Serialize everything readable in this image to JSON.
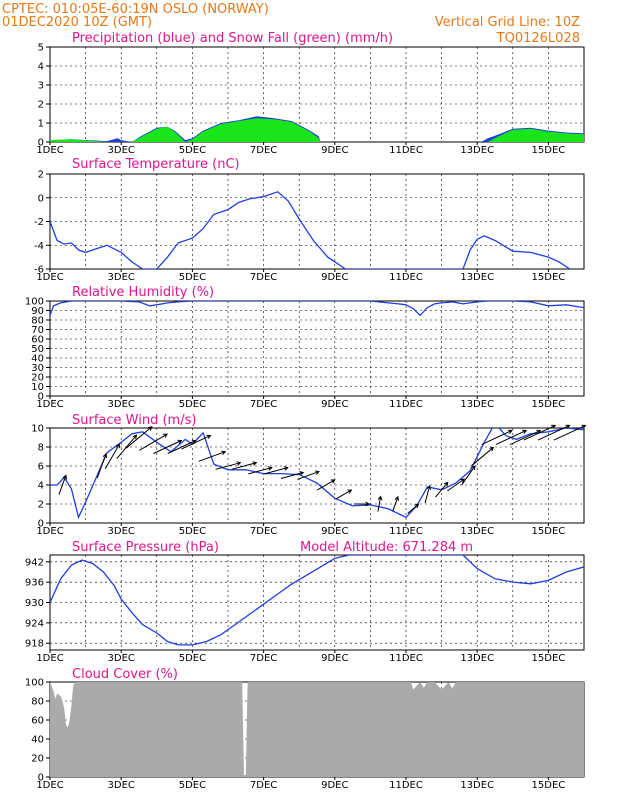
{
  "header": {
    "line1": "CPTEC:   010:05E-60:19N   OSLO (NORWAY)",
    "line2": "01DEC2020 10Z (GMT)",
    "grid_note": "Vertical Grid Line: 10Z",
    "code": "TQ0126L028"
  },
  "colors": {
    "header": "#e8791a",
    "title": "#e0168c",
    "line": "#1f3fe0",
    "snow": "#19e619",
    "cloud": "#aaaaaa",
    "arrow": "#000000"
  },
  "x_axis": {
    "start_day": 1,
    "end_day": 16,
    "tick_labels": [
      "1DEC",
      "3DEC",
      "5DEC",
      "7DEC",
      "9DEC",
      "11DEC",
      "13DEC",
      "15DEC"
    ]
  },
  "chart_data": [
    {
      "type": "area",
      "title": "Precipitation (blue) and Snow Fall (green) (mm/h)",
      "ylim": [
        0,
        5
      ],
      "yticks": [
        "0",
        "1",
        "2",
        "3",
        "4",
        "5"
      ],
      "series": [
        {
          "name": "Precipitation (blue)",
          "x": [
            1,
            1.6,
            2.6,
            2.9,
            3.0,
            3.3,
            3.55,
            4.0,
            4.3,
            4.5,
            4.8,
            5.0,
            5.3,
            5.8,
            6.3,
            6.8,
            7.3,
            7.8,
            8.3,
            8.55,
            8.6,
            13.1,
            13.3,
            13.6,
            14.0,
            14.5,
            15.0,
            15.5,
            16.0
          ],
          "values": [
            0.1,
            0.15,
            0.05,
            0.2,
            0.1,
            0.0,
            0.3,
            0.75,
            0.8,
            0.6,
            0.1,
            0.2,
            0.6,
            1.0,
            1.15,
            1.35,
            1.25,
            1.1,
            0.6,
            0.3,
            0.0,
            0.0,
            0.2,
            0.4,
            0.7,
            0.75,
            0.6,
            0.5,
            0.45
          ]
        },
        {
          "name": "Snow Fall (green)",
          "x": [
            1,
            1.6,
            2.6,
            2.9,
            3.0,
            3.3,
            3.55,
            4.0,
            4.3,
            4.5,
            4.8,
            5.0,
            5.3,
            5.8,
            6.3,
            6.8,
            7.3,
            7.8,
            8.3,
            8.55,
            8.6,
            13.1,
            13.3,
            13.6,
            14.0,
            14.5,
            15.0,
            15.5,
            16.0
          ],
          "values": [
            0.1,
            0.15,
            0.0,
            0.0,
            0.0,
            0.0,
            0.25,
            0.7,
            0.8,
            0.55,
            0.0,
            0.15,
            0.55,
            0.95,
            1.1,
            1.25,
            1.2,
            1.05,
            0.55,
            0.2,
            0.0,
            0.0,
            0.0,
            0.3,
            0.65,
            0.7,
            0.55,
            0.45,
            0.4
          ]
        }
      ]
    },
    {
      "type": "line",
      "title": "Surface Temperature (nC)",
      "ylim": [
        -6,
        2
      ],
      "yticks": [
        "-6",
        "-4",
        "-2",
        "0",
        "2"
      ],
      "series": [
        {
          "x": [
            1,
            1.2,
            1.4,
            1.6,
            1.8,
            2.0,
            2.3,
            2.6,
            3.0,
            3.3,
            3.6,
            4.0,
            4.3,
            4.6,
            5.0,
            5.3,
            5.6,
            6.0,
            6.3,
            6.6,
            7.0,
            7.4,
            7.7,
            8.0,
            8.4,
            8.8,
            9.3,
            12.6,
            12.8,
            13.0,
            13.2,
            13.5,
            14.0,
            14.5,
            15.0,
            15.3,
            15.6
          ],
          "values": [
            -2.0,
            -3.6,
            -3.9,
            -3.8,
            -4.4,
            -4.6,
            -4.3,
            -4.0,
            -4.6,
            -5.4,
            -6.0,
            -6.0,
            -5.0,
            -3.8,
            -3.4,
            -2.6,
            -1.4,
            -1.0,
            -0.4,
            -0.1,
            0.1,
            0.5,
            -0.3,
            -1.8,
            -3.6,
            -5.0,
            -6.0,
            -6.0,
            -4.4,
            -3.5,
            -3.2,
            -3.6,
            -4.5,
            -4.6,
            -5.0,
            -5.4,
            -6.0
          ]
        }
      ]
    },
    {
      "type": "line",
      "title": "Relative Humidity (%)",
      "ylim": [
        0,
        100
      ],
      "yticks": [
        "0",
        "10",
        "20",
        "30",
        "40",
        "50",
        "60",
        "70",
        "80",
        "90",
        "100"
      ],
      "series": [
        {
          "x": [
            1,
            1.1,
            1.3,
            1.6,
            2.0,
            2.5,
            3.0,
            3.5,
            3.8,
            4.0,
            4.3,
            4.6,
            5.0,
            5.5,
            6.0,
            7.0,
            8.0,
            9.0,
            10.0,
            10.5,
            10.8,
            11.0,
            11.2,
            11.4,
            11.6,
            11.8,
            12.0,
            12.3,
            12.6,
            13.0,
            13.3,
            13.6,
            14.0,
            14.5,
            15.0,
            15.5,
            16.0
          ],
          "values": [
            85,
            95,
            98,
            100,
            100,
            100,
            100,
            99,
            95,
            96,
            98,
            99,
            100,
            100,
            100,
            100,
            100,
            100,
            100,
            98,
            97,
            96,
            92,
            85,
            93,
            97,
            98,
            99,
            97,
            99,
            100,
            100,
            100,
            99,
            95,
            96,
            93
          ]
        }
      ]
    },
    {
      "type": "line",
      "title": "Surface Wind (m/s)",
      "ylim": [
        0,
        10
      ],
      "yticks": [
        "0",
        "2",
        "4",
        "6",
        "8",
        "10"
      ],
      "series": [
        {
          "x": [
            1,
            1.2,
            1.4,
            1.6,
            1.8,
            2.0,
            2.3,
            2.6,
            3.0,
            3.3,
            3.6,
            4.0,
            4.4,
            4.8,
            5.0,
            5.3,
            5.6,
            6.0,
            6.5,
            7.0,
            7.5,
            8.0,
            8.5,
            9.0,
            9.5,
            10.0,
            10.5,
            11.0,
            11.3,
            11.6,
            12.0,
            12.4,
            12.8,
            13.2,
            13.5,
            13.8,
            14.1,
            14.5,
            15.0,
            15.5,
            16.0
          ],
          "values": [
            4,
            4,
            4.8,
            3.6,
            0.6,
            2.2,
            4.8,
            7.4,
            8.5,
            9.4,
            9.6,
            8.5,
            7.5,
            8.8,
            8.3,
            9.5,
            6.2,
            5.6,
            5.6,
            5.2,
            5.2,
            5.1,
            4.2,
            2.6,
            1.8,
            1.9,
            1.5,
            0.6,
            1.8,
            3.8,
            3.5,
            4.2,
            5.5,
            8.5,
            10.5,
            9.2,
            8.8,
            9.4,
            9.6,
            10.0,
            9.8
          ]
        }
      ],
      "wind_barbs": [
        {
          "x": 1.35,
          "dir": 200,
          "speed": 4
        },
        {
          "x": 2.45,
          "dir": 200,
          "speed": 6
        },
        {
          "x": 2.75,
          "dir": 210,
          "speed": 7
        },
        {
          "x": 3.15,
          "dir": 220,
          "speed": 8
        },
        {
          "x": 3.5,
          "dir": 230,
          "speed": 9
        },
        {
          "x": 3.9,
          "dir": 240,
          "speed": 8.5
        },
        {
          "x": 4.3,
          "dir": 245,
          "speed": 8
        },
        {
          "x": 4.7,
          "dir": 245,
          "speed": 8
        },
        {
          "x": 5.1,
          "dir": 245,
          "speed": 8.5
        },
        {
          "x": 5.55,
          "dir": 250,
          "speed": 7
        },
        {
          "x": 6.0,
          "dir": 255,
          "speed": 6
        },
        {
          "x": 6.45,
          "dir": 255,
          "speed": 6
        },
        {
          "x": 6.9,
          "dir": 255,
          "speed": 5.5
        },
        {
          "x": 7.35,
          "dir": 255,
          "speed": 5.5
        },
        {
          "x": 7.8,
          "dir": 255,
          "speed": 5
        },
        {
          "x": 8.25,
          "dir": 250,
          "speed": 5
        },
        {
          "x": 8.75,
          "dir": 240,
          "speed": 4
        },
        {
          "x": 9.25,
          "dir": 240,
          "speed": 3
        },
        {
          "x": 9.75,
          "dir": 270,
          "speed": 2
        },
        {
          "x": 10.25,
          "dir": 190,
          "speed": 2
        },
        {
          "x": 10.7,
          "dir": 200,
          "speed": 2
        },
        {
          "x": 11.2,
          "dir": 230,
          "speed": 1.5
        },
        {
          "x": 11.6,
          "dir": 195,
          "speed": 3
        },
        {
          "x": 12.0,
          "dir": 220,
          "speed": 3.5
        },
        {
          "x": 12.4,
          "dir": 235,
          "speed": 4
        },
        {
          "x": 12.75,
          "dir": 215,
          "speed": 5
        },
        {
          "x": 13.15,
          "dir": 230,
          "speed": 7
        },
        {
          "x": 13.55,
          "dir": 245,
          "speed": 9
        },
        {
          "x": 13.95,
          "dir": 245,
          "speed": 9
        },
        {
          "x": 14.35,
          "dir": 245,
          "speed": 9
        },
        {
          "x": 14.75,
          "dir": 245,
          "speed": 9.5
        },
        {
          "x": 15.15,
          "dir": 245,
          "speed": 9.5
        },
        {
          "x": 15.6,
          "dir": 245,
          "speed": 9.5
        }
      ]
    },
    {
      "type": "line",
      "title": "Surface Pressure (hPa)",
      "annotation": "Model Altitude: 671.284  m",
      "ylim": [
        916,
        944
      ],
      "yticks": [
        "918",
        "924",
        "930",
        "936",
        "942"
      ],
      "series": [
        {
          "x": [
            1,
            1.3,
            1.6,
            1.9,
            2.2,
            2.5,
            2.8,
            3.0,
            3.3,
            3.6,
            4.0,
            4.3,
            4.6,
            5.0,
            5.4,
            5.8,
            6.2,
            6.6,
            7.0,
            7.4,
            7.8,
            8.2,
            8.6,
            9.0,
            9.4,
            9.8,
            10.2,
            10.6,
            11.0,
            11.4,
            11.8,
            12.2,
            12.6,
            13.0,
            13.5,
            14.0,
            14.5,
            15.0,
            15.5,
            16.0
          ],
          "values": [
            930,
            937,
            941,
            942.5,
            941.5,
            939,
            935,
            931,
            927,
            923.5,
            921,
            918.5,
            917.5,
            917.5,
            918.5,
            920.5,
            923.5,
            926.5,
            929.5,
            932.5,
            935.5,
            938,
            940.5,
            943,
            944,
            944,
            944,
            944,
            944,
            944,
            944,
            944,
            944,
            940,
            937,
            936,
            935.5,
            936.5,
            939,
            940.5
          ]
        }
      ]
    },
    {
      "type": "area",
      "title": "Cloud Cover (%)",
      "ylim": [
        0,
        100
      ],
      "yticks": [
        "0",
        "20",
        "40",
        "60",
        "80",
        "100"
      ],
      "series": [
        {
          "x": [
            1,
            1.1,
            1.15,
            1.2,
            1.3,
            1.35,
            1.4,
            1.45,
            1.5,
            1.55,
            1.6,
            1.65,
            1.7,
            1.8,
            1.9,
            2.1,
            6.4,
            6.45,
            6.5,
            6.55,
            11.15,
            11.2,
            11.3,
            11.4,
            11.5,
            11.6,
            11.8,
            12.0,
            12.2,
            12.3,
            12.4,
            12.6,
            16.0
          ],
          "values": [
            100,
            90,
            82,
            88,
            85,
            80,
            72,
            55,
            52,
            60,
            75,
            95,
            100,
            100,
            100,
            100,
            100,
            2,
            2,
            100,
            100,
            92,
            96,
            100,
            94,
            100,
            100,
            92,
            100,
            93,
            100,
            100,
            100
          ]
        }
      ]
    }
  ]
}
